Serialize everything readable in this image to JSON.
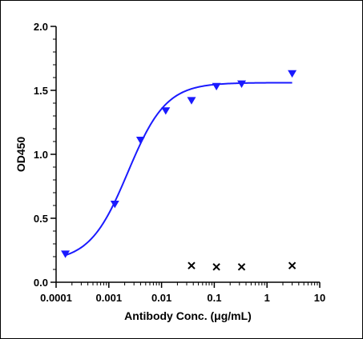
{
  "chart_data": {
    "type": "scatter",
    "xscale": "log",
    "xlabel": "Antibody Conc. (μg/mL)",
    "ylabel": "OD450",
    "xlim": [
      0.0001,
      10
    ],
    "ylim": [
      0,
      2.0
    ],
    "x_ticks": [
      "0.0001",
      "0.001",
      "0.01",
      "0.1",
      "1",
      "10"
    ],
    "y_ticks": [
      "0.0",
      "0.5",
      "1.0",
      "1.5",
      "2.0"
    ],
    "grid": false,
    "legend": "none",
    "series": [
      {
        "marker": "triangle-down",
        "color": "#1a1aff",
        "points": [
          {
            "x": 0.00015,
            "y": 0.22
          },
          {
            "x": 0.0013,
            "y": 0.61
          },
          {
            "x": 0.004,
            "y": 1.11
          },
          {
            "x": 0.012,
            "y": 1.34
          },
          {
            "x": 0.037,
            "y": 1.42
          },
          {
            "x": 0.11,
            "y": 1.53
          },
          {
            "x": 0.33,
            "y": 1.55
          },
          {
            "x": 3.0,
            "y": 1.63
          }
        ],
        "fit": {
          "kind": "4PL",
          "bottom": 0.16,
          "top": 1.56,
          "ec50": 0.0023,
          "hill": 1.2,
          "x_range": [
            0.00015,
            3.0
          ]
        }
      },
      {
        "marker": "cross",
        "color": "#000000",
        "points": [
          {
            "x": 0.037,
            "y": 0.13
          },
          {
            "x": 0.11,
            "y": 0.12
          },
          {
            "x": 0.33,
            "y": 0.12
          },
          {
            "x": 3.0,
            "y": 0.13
          }
        ]
      }
    ]
  }
}
